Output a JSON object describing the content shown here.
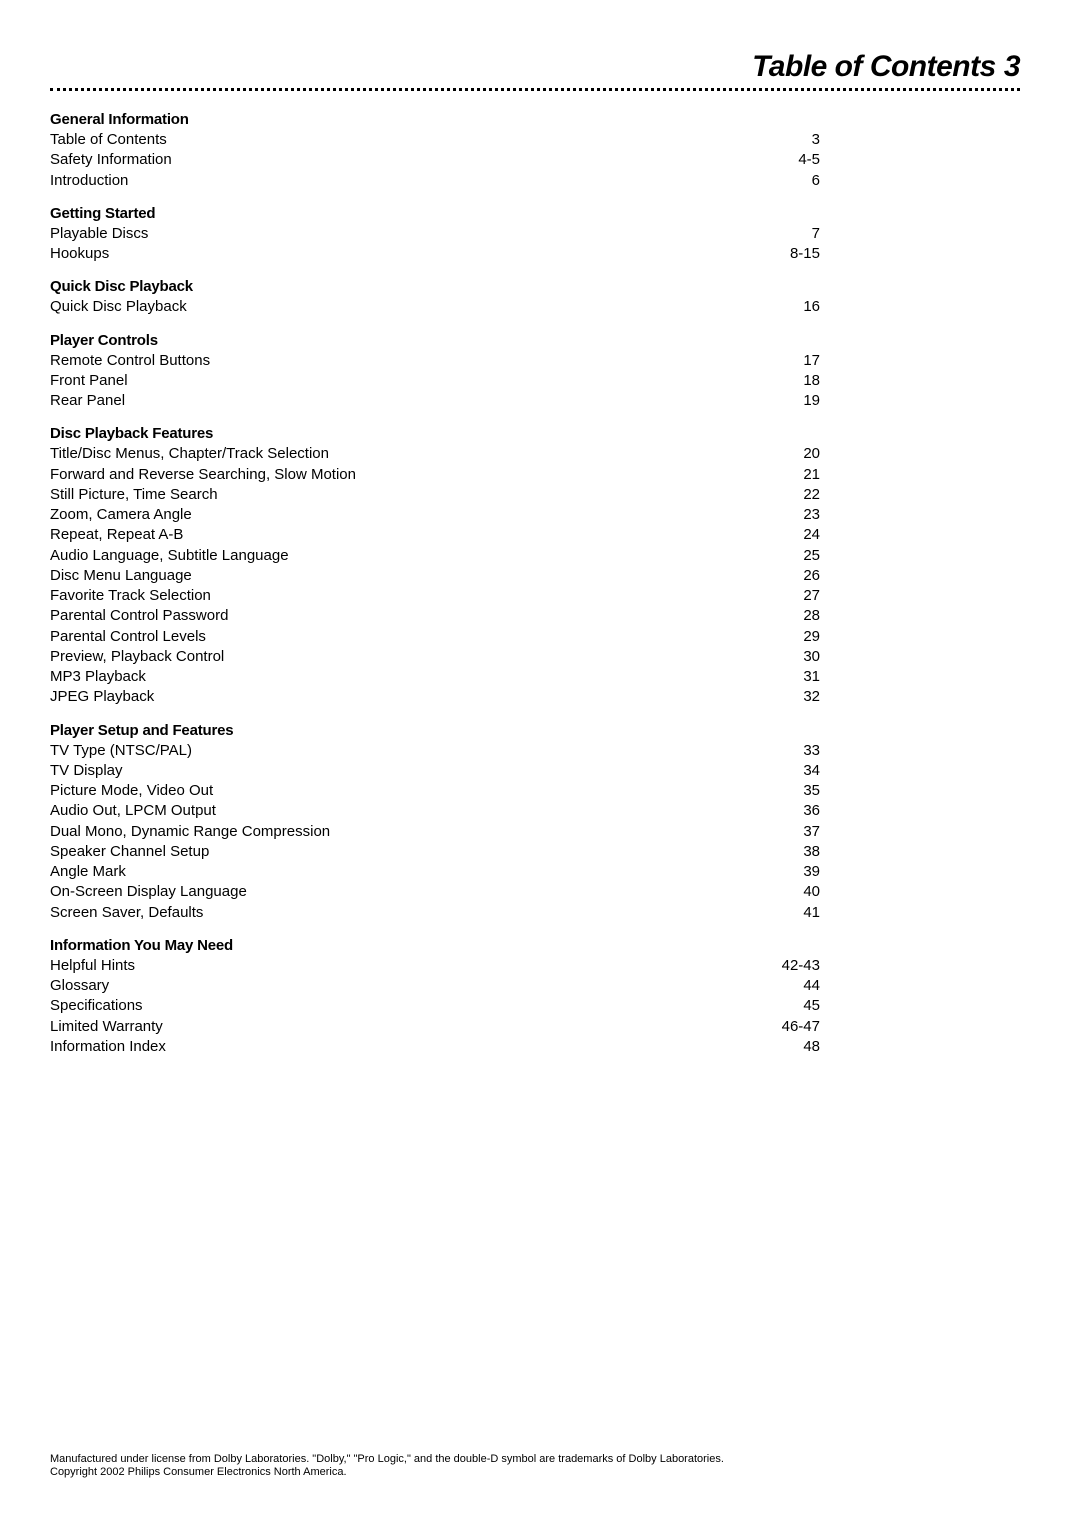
{
  "title": "Table of Contents",
  "page_number": "3",
  "colors": {
    "text": "#000000",
    "background": "#ffffff"
  },
  "typography": {
    "title_fontsize": 30,
    "heading_fontsize": 15,
    "body_fontsize": 15,
    "footer_fontsize": 11,
    "font_family": "Arial, Helvetica, sans-serif"
  },
  "sections": [
    {
      "heading": "General Information",
      "entries": [
        {
          "label": "Table of Contents",
          "page": "3"
        },
        {
          "label": "Safety Information",
          "page": "4-5"
        },
        {
          "label": "Introduction",
          "page": "6"
        }
      ]
    },
    {
      "heading": "Getting Started",
      "entries": [
        {
          "label": "Playable Discs",
          "page": "7"
        },
        {
          "label": "Hookups",
          "page": "8-15"
        }
      ]
    },
    {
      "heading": "Quick Disc Playback",
      "entries": [
        {
          "label": "Quick Disc Playback",
          "page": "16"
        }
      ]
    },
    {
      "heading": "Player Controls",
      "entries": [
        {
          "label": "Remote Control Buttons",
          "page": "17"
        },
        {
          "label": "Front Panel",
          "page": "18"
        },
        {
          "label": "Rear Panel",
          "page": "19"
        }
      ]
    },
    {
      "heading": "Disc Playback Features",
      "entries": [
        {
          "label": "Title/Disc Menus, Chapter/Track Selection",
          "page": "20"
        },
        {
          "label": "Forward and Reverse Searching, Slow Motion",
          "page": "21"
        },
        {
          "label": "Still Picture, Time Search",
          "page": "22"
        },
        {
          "label": "Zoom, Camera Angle",
          "page": "23"
        },
        {
          "label": "Repeat, Repeat A-B",
          "page": "24"
        },
        {
          "label": "Audio Language, Subtitle Language",
          "page": "25"
        },
        {
          "label": "Disc Menu Language",
          "page": "26"
        },
        {
          "label": "Favorite Track Selection",
          "page": "27"
        },
        {
          "label": "Parental Control Password",
          "page": "28"
        },
        {
          "label": "Parental Control Levels",
          "page": "29"
        },
        {
          "label": "Preview, Playback Control",
          "page": "30"
        },
        {
          "label": "MP3 Playback",
          "page": "31"
        },
        {
          "label": "JPEG Playback",
          "page": "32"
        }
      ]
    },
    {
      "heading": "Player Setup and Features",
      "entries": [
        {
          "label": "TV Type (NTSC/PAL)",
          "page": "33"
        },
        {
          "label": "TV Display",
          "page": "34"
        },
        {
          "label": "Picture Mode, Video Out",
          "page": "35"
        },
        {
          "label": "Audio Out, LPCM Output",
          "page": "36"
        },
        {
          "label": "Dual Mono, Dynamic Range Compression",
          "page": "37"
        },
        {
          "label": "Speaker Channel Setup",
          "page": "38"
        },
        {
          "label": "Angle Mark",
          "page": "39"
        },
        {
          "label": "On-Screen Display Language",
          "page": "40"
        },
        {
          "label": "Screen Saver, Defaults",
          "page": "41"
        }
      ]
    },
    {
      "heading": "Information You May Need",
      "entries": [
        {
          "label": "Helpful Hints",
          "page": "42-43"
        },
        {
          "label": "Glossary",
          "page": "44"
        },
        {
          "label": "Specifications",
          "page": "45"
        },
        {
          "label": "Limited Warranty",
          "page": "46-47"
        },
        {
          "label": "Information Index",
          "page": "48"
        }
      ]
    }
  ],
  "footer": {
    "line1": "Manufactured under license from Dolby Laboratories. \"Dolby,\" \"Pro Logic,\" and the double-D symbol are trademarks of Dolby Laboratories.",
    "line2": "Copyright 2002 Philips Consumer Electronics North America."
  }
}
